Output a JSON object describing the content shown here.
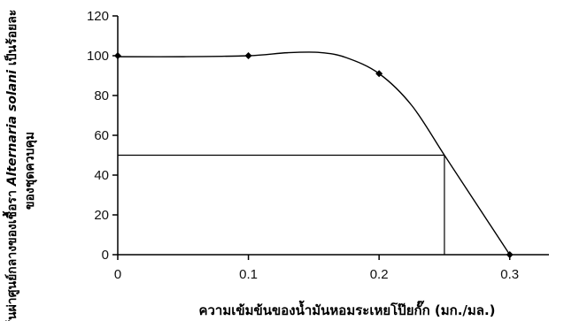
{
  "chart_data": {
    "type": "line",
    "x_ticks": [
      "0",
      "0.1",
      "0.2",
      "0.3"
    ],
    "y_ticks": [
      "0",
      "20",
      "40",
      "60",
      "80",
      "100",
      "120"
    ],
    "xlim": [
      0,
      0.33
    ],
    "ylim": [
      0,
      120
    ],
    "grid": false,
    "legend": "none",
    "series": [
      {
        "marker_points": [
          {
            "x": 0,
            "y": 100
          },
          {
            "x": 0.1,
            "y": 100
          },
          {
            "x": 0.2,
            "y": 91
          },
          {
            "x": 0.3,
            "y": 0
          }
        ],
        "curve": [
          {
            "x": 0,
            "y": 99.5
          },
          {
            "x": 0.05,
            "y": 99.5
          },
          {
            "x": 0.1,
            "y": 100
          },
          {
            "x": 0.13,
            "y": 101.5
          },
          {
            "x": 0.155,
            "y": 101.6
          },
          {
            "x": 0.175,
            "y": 99
          },
          {
            "x": 0.2,
            "y": 91
          },
          {
            "x": 0.225,
            "y": 75
          },
          {
            "x": 0.25,
            "y": 50
          },
          {
            "x": 0.275,
            "y": 25
          },
          {
            "x": 0.3,
            "y": 0
          }
        ]
      }
    ],
    "reference_lines": [
      {
        "from": {
          "x": 0,
          "y": 50
        },
        "to": {
          "x": 0.25,
          "y": 50
        }
      },
      {
        "from": {
          "x": 0.25,
          "y": 50
        },
        "to": {
          "x": 0.25,
          "y": 0
        }
      }
    ],
    "xlabel": "ความเข้มข้นของน้ำมันหอมระเหยโป๊ยกั๊ก (มก./มล.)",
    "ylabel_lines": [
      {
        "text": "เส้นผ่าศูนย์กลางของเชื้อรา ",
        "italic": false
      },
      {
        "text": "Alternaria solani",
        "italic": true
      },
      {
        "text": " เป็นร้อยละ",
        "italic": false
      }
    ],
    "ylabel_line2": "ของชุดควบคุม",
    "colors": {
      "line": "#000000",
      "marker": "#000000",
      "axis": "#000000"
    }
  }
}
